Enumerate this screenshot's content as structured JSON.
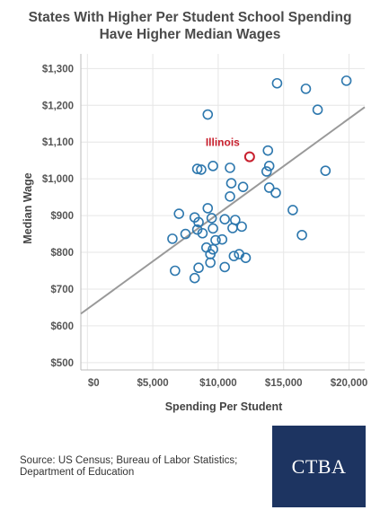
{
  "chart_data": {
    "type": "scatter",
    "title_lines": [
      "States With Higher Per Student School Spending",
      "Have Higher Median Wages"
    ],
    "xlabel": "Spending Per Student",
    "ylabel": "Median Wage",
    "xlim": [
      -500,
      21200
    ],
    "ylim": [
      480,
      1340
    ],
    "x_ticks": [
      0,
      5000,
      10000,
      15000,
      20000
    ],
    "x_tick_labels": [
      "$0",
      "$5,000",
      "$10,000",
      "$15,000",
      "$20,000"
    ],
    "y_ticks": [
      500,
      600,
      700,
      800,
      900,
      1000,
      1100,
      1200,
      1300
    ],
    "y_tick_labels": [
      "$500",
      "$600",
      "$700",
      "$800",
      "$900",
      "$1,000",
      "$1,100",
      "$1,200",
      "$1,300"
    ],
    "grid": true,
    "trendline": {
      "x": [
        -500,
        21200
      ],
      "y": [
        633,
        1195
      ]
    },
    "highlight": {
      "label": "Illinois",
      "x": 12400,
      "y": 1060
    },
    "points": [
      {
        "x": 6700,
        "y": 750
      },
      {
        "x": 8200,
        "y": 730
      },
      {
        "x": 8500,
        "y": 758
      },
      {
        "x": 10500,
        "y": 760
      },
      {
        "x": 9400,
        "y": 772
      },
      {
        "x": 11200,
        "y": 790
      },
      {
        "x": 11600,
        "y": 795
      },
      {
        "x": 12100,
        "y": 785
      },
      {
        "x": 9400,
        "y": 795
      },
      {
        "x": 9600,
        "y": 808
      },
      {
        "x": 9100,
        "y": 813
      },
      {
        "x": 9800,
        "y": 833
      },
      {
        "x": 10300,
        "y": 835
      },
      {
        "x": 6500,
        "y": 837
      },
      {
        "x": 7500,
        "y": 850
      },
      {
        "x": 8800,
        "y": 852
      },
      {
        "x": 9600,
        "y": 865
      },
      {
        "x": 8400,
        "y": 862
      },
      {
        "x": 11100,
        "y": 866
      },
      {
        "x": 11800,
        "y": 870
      },
      {
        "x": 8500,
        "y": 882
      },
      {
        "x": 8200,
        "y": 895
      },
      {
        "x": 7000,
        "y": 905
      },
      {
        "x": 9500,
        "y": 893
      },
      {
        "x": 10500,
        "y": 890
      },
      {
        "x": 11300,
        "y": 888
      },
      {
        "x": 9200,
        "y": 920
      },
      {
        "x": 10900,
        "y": 952
      },
      {
        "x": 11900,
        "y": 978
      },
      {
        "x": 11000,
        "y": 988
      },
      {
        "x": 8400,
        "y": 1027
      },
      {
        "x": 8700,
        "y": 1025
      },
      {
        "x": 9600,
        "y": 1035
      },
      {
        "x": 10900,
        "y": 1030
      },
      {
        "x": 9200,
        "y": 1175
      },
      {
        "x": 13700,
        "y": 1020
      },
      {
        "x": 13900,
        "y": 1035
      },
      {
        "x": 13800,
        "y": 1077
      },
      {
        "x": 13900,
        "y": 976
      },
      {
        "x": 14400,
        "y": 962
      },
      {
        "x": 15700,
        "y": 915
      },
      {
        "x": 16400,
        "y": 847
      },
      {
        "x": 14500,
        "y": 1260
      },
      {
        "x": 16700,
        "y": 1245
      },
      {
        "x": 17600,
        "y": 1188
      },
      {
        "x": 18200,
        "y": 1022
      },
      {
        "x": 19800,
        "y": 1267
      }
    ],
    "colors": {
      "points": "#2e78ae",
      "highlight": "#c8202e",
      "trendline": "#999999",
      "grid": "#e6e6e6"
    }
  },
  "footer": {
    "source": "Source: US Census; Bureau of Labor Statistics; Department of Education",
    "logo_text": "CTBA",
    "logo_color": "#1d3461"
  }
}
